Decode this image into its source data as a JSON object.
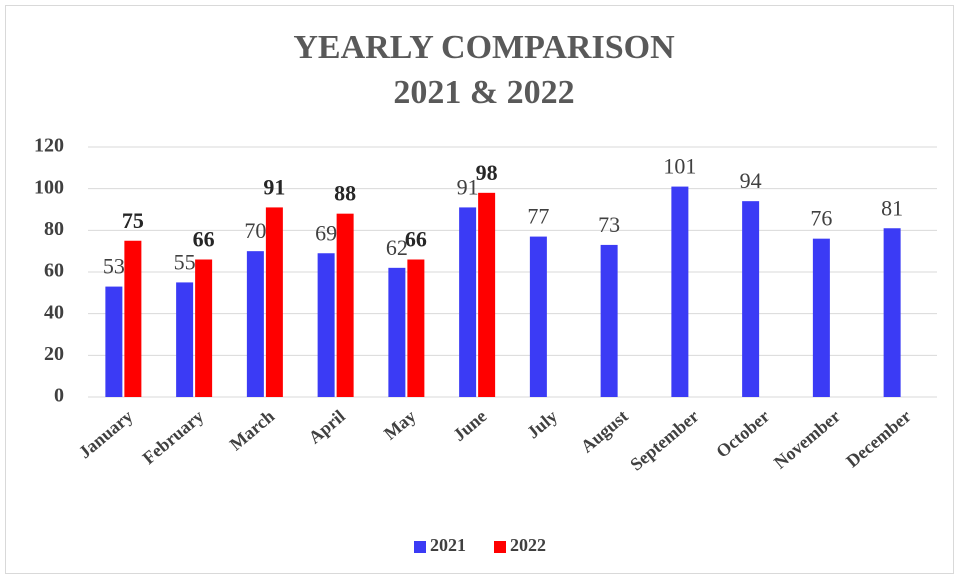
{
  "chart_data": {
    "type": "bar",
    "title": [
      "YEARLY COMPARISON",
      "2021 & 2022"
    ],
    "categories": [
      "January",
      "February",
      "March",
      "April",
      "May",
      "June",
      "July",
      "August",
      "September",
      "October",
      "November",
      "December"
    ],
    "series": [
      {
        "name": "2021",
        "color": "#3b3bf5",
        "values": [
          53,
          55,
          70,
          69,
          62,
          91,
          77,
          73,
          101,
          94,
          76,
          81
        ]
      },
      {
        "name": "2022",
        "color": "#ff0000",
        "values": [
          75,
          66,
          91,
          88,
          66,
          98,
          null,
          null,
          null,
          null,
          null,
          null
        ]
      }
    ],
    "ylim": [
      0,
      120
    ],
    "yticks": [
      0,
      20,
      40,
      60,
      80,
      100,
      120
    ],
    "grid": true,
    "legend": "bottom"
  }
}
